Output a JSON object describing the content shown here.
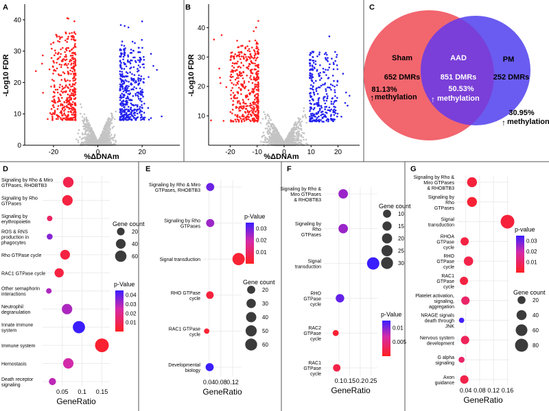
{
  "colors": {
    "red": "#ff1f1f",
    "blue": "#2222ee",
    "grey": "#c4c4c4",
    "venn_left": "#f2666e",
    "venn_right": "#6a5cf0",
    "venn_mid": "#7a3fd8"
  },
  "chart_data": [
    {
      "panel": "A",
      "type": "scatter",
      "title": "",
      "xlabel": "%ΔDNAm",
      "ylabel": "-Log10 FDR",
      "xlim": [
        -33,
        37
      ],
      "ylim": [
        0,
        45
      ],
      "xticks": [
        -20,
        0,
        20
      ],
      "yticks": [
        0,
        10,
        20,
        30,
        40
      ],
      "series": [
        {
          "name": "hypomethylated",
          "color": "red"
        },
        {
          "name": "hypermethylated",
          "color": "blue"
        },
        {
          "name": "not significant",
          "color": "grey"
        }
      ]
    },
    {
      "panel": "B",
      "type": "scatter",
      "title": "",
      "xlabel": "%ΔDNAm",
      "ylabel": "-Log10 FDR",
      "xlim": [
        -28,
        28
      ],
      "ylim": [
        0,
        48
      ],
      "xticks": [
        -20,
        -10,
        0,
        10,
        20
      ],
      "yticks": [
        10,
        20,
        30,
        40
      ],
      "series": [
        {
          "name": "hypomethylated",
          "color": "red"
        },
        {
          "name": "hypermethylated",
          "color": "blue"
        },
        {
          "name": "not significant",
          "color": "grey"
        }
      ]
    },
    {
      "panel": "C",
      "type": "venn",
      "sets": [
        {
          "name": "Sham",
          "count_label": "652 DMRs",
          "pct": "81.13%",
          "meth": "methylation"
        },
        {
          "name": "AAD",
          "count_label": "851 DMRs",
          "pct": "50.53%",
          "meth": "methylation"
        },
        {
          "name": "PM",
          "count_label": "252 DMRs",
          "pct": "30.95%",
          "meth": "methylation"
        }
      ]
    },
    {
      "panel": "D",
      "type": "scatter",
      "xlabel": "GeneRatio",
      "xlim": [
        0,
        0.17
      ],
      "xticks": [
        0.05,
        0.1,
        0.15
      ],
      "categories": [
        "Signaling by Rho & Miro\nGTPases, RHOBTB3",
        "Signaling by Rho\nGTPases",
        "Signaling by\nerythropoietin",
        "ROS & RNS\nproduction in\nphagocytes",
        "Rho GTPase cycle",
        "RAC1 GTPase cycle",
        "Other semaphorin\ninteractions",
        "Neutrophil\ndegranulation",
        "Innate immune\nsystem",
        "Immune system",
        "Hemostasis",
        "Death receptor\nsignaling"
      ],
      "x": [
        0.065,
        0.063,
        0.018,
        0.018,
        0.057,
        0.042,
        0.016,
        0.062,
        0.092,
        0.15,
        0.065,
        0.025
      ],
      "pvalue": [
        0.008,
        0.006,
        0.012,
        0.035,
        0.006,
        0.006,
        0.03,
        0.03,
        0.045,
        0.003,
        0.025,
        0.028
      ],
      "count": [
        50,
        48,
        6,
        8,
        40,
        34,
        6,
        48,
        72,
        98,
        48,
        16
      ],
      "colorbar": {
        "title": "p-Value",
        "ticks": [
          0.04,
          0.03,
          0.02,
          0.01
        ],
        "range": [
          0,
          0.045
        ]
      },
      "sizelegend": {
        "title": "Gene count",
        "ticks": [
          20,
          40,
          60
        ]
      }
    },
    {
      "panel": "E",
      "type": "scatter",
      "xlabel": "GeneRatio",
      "xlim": [
        0.02,
        0.15
      ],
      "xticks": [
        0.04,
        0.08,
        0.12
      ],
      "categories": [
        "Signaling by Rho & Miro\nGTPases, RHOBTB3",
        "Signaling by Rho\nGTPases",
        "Signal transduction",
        "RHO GTPase\ncycle",
        "RAC1 GTPase\ncycle",
        "Developmental\nbiology"
      ],
      "x": [
        0.044,
        0.044,
        0.14,
        0.043,
        0.032,
        0.042
      ],
      "pvalue": [
        0.03,
        0.025,
        0.003,
        0.004,
        0.003,
        0.035
      ],
      "count": [
        20,
        20,
        65,
        16,
        5,
        20
      ],
      "colorbar": {
        "title": "p-Value",
        "ticks": [
          0.03,
          0.02,
          0.01
        ],
        "range": [
          0,
          0.035
        ]
      },
      "sizelegend": {
        "title": "Gene count",
        "ticks": [
          20,
          30,
          40,
          50,
          60
        ]
      }
    },
    {
      "panel": "F",
      "type": "scatter",
      "xlabel": "GeneRatio",
      "xlim": [
        0.03,
        0.28
      ],
      "xticks": [
        0.1,
        0.15,
        0.2,
        0.25
      ],
      "categories": [
        "Signaling by Rho &\nMiro GTPases\n& RHOBTB3",
        "Signaling by\nRho\nGTPases",
        "Signal\ntransduction",
        "RHO\nGTPase\ncycle",
        "RAC2\nGTPase\ncycle",
        "RAC1\nGTPase\ncycle"
      ],
      "x": [
        0.12,
        0.12,
        0.26,
        0.105,
        0.085,
        0.09
      ],
      "pvalue": [
        0.009,
        0.009,
        0.013,
        0.011,
        0.001,
        0.002
      ],
      "count": [
        16,
        16,
        33,
        12,
        4,
        8
      ],
      "colorbar": {
        "title": "p-Value",
        "ticks": [
          0.01,
          0.005
        ],
        "range": [
          0,
          0.0125
        ]
      },
      "sizelegend": {
        "title": "Gene count",
        "ticks": [
          10,
          15,
          20,
          25,
          30
        ]
      }
    },
    {
      "panel": "G",
      "type": "scatter",
      "xlabel": "GeneRatio",
      "xlim": [
        0.015,
        0.165
      ],
      "xticks": [
        0.04,
        0.08,
        0.12,
        0.16
      ],
      "categories": [
        "Signaling by Rho &\nMiro GTPases\n& RHOBTB3",
        "Signaling by\nRho\nGTPases",
        "Signal\ntransduction",
        "RHOA\nGTPase\ncycle",
        "RHO\nGTPase\ncycle",
        "RAC1\nGTPase\ncycle",
        "Platelet activation,\nsignaling,\naggregation",
        "NRAGE signals\ndeath through\nJNK",
        "Nervous system\ndevelopment",
        "G alpha\nsignaling",
        "Axon\nguidance"
      ],
      "x": [
        0.058,
        0.058,
        0.16,
        0.037,
        0.048,
        0.035,
        0.039,
        0.028,
        0.038,
        0.028,
        0.036
      ],
      "pvalue": [
        0.004,
        0.003,
        0.004,
        0.005,
        0.006,
        0.005,
        0.01,
        0.034,
        0.008,
        0.01,
        0.006
      ],
      "count": [
        38,
        38,
        90,
        22,
        32,
        22,
        24,
        5,
        24,
        8,
        24
      ],
      "colorbar": {
        "title": "p-value",
        "ticks": [
          0.03,
          0.02,
          0.01
        ],
        "range": [
          0,
          0.035
        ]
      },
      "sizelegend": {
        "title": "Gene count",
        "ticks": [
          20,
          40,
          60,
          80
        ]
      }
    }
  ]
}
